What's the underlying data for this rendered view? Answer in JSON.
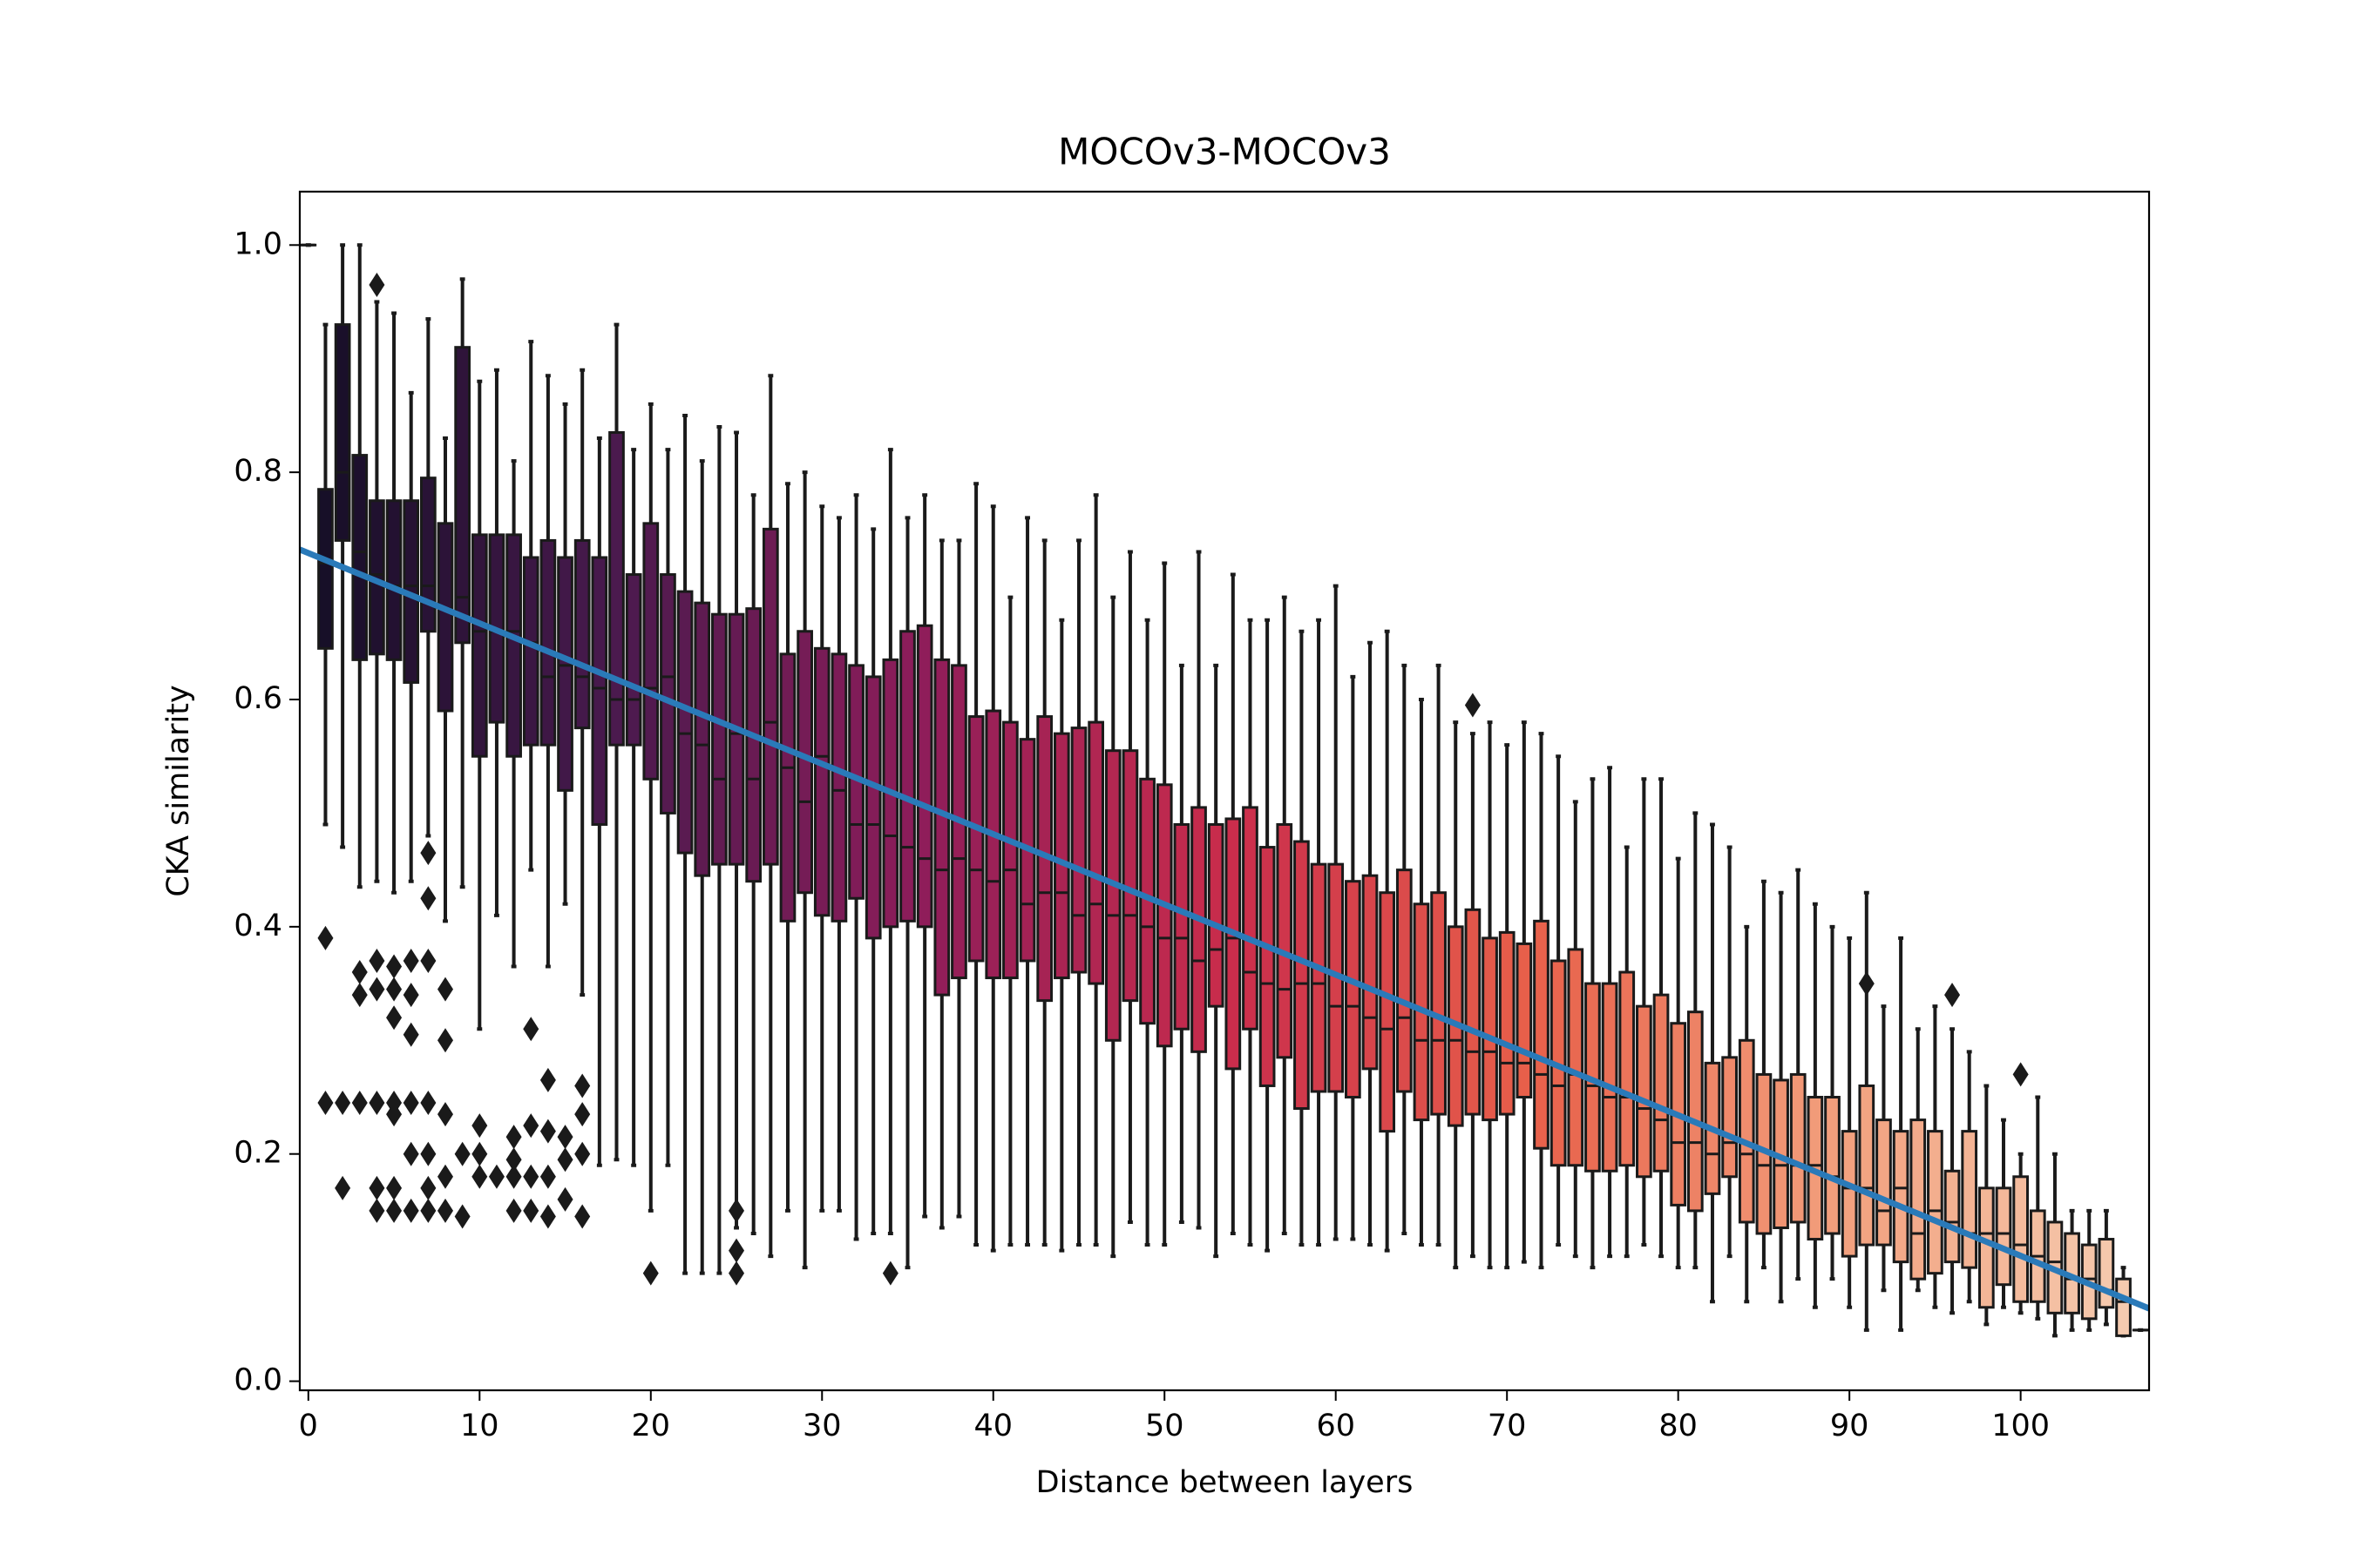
{
  "chart_data": {
    "type": "boxplot",
    "title": "MOCOv3-MOCOv3",
    "xlabel": "Distance between layers",
    "ylabel": "CKA similarity",
    "xlim": [
      -0.5,
      107.5
    ],
    "ylim": [
      -0.008,
      1.047
    ],
    "xticks": [
      0,
      10,
      20,
      30,
      40,
      50,
      60,
      70,
      80,
      90,
      100
    ],
    "yticks": [
      {
        "value": 0,
        "label": "0.0"
      },
      0.2,
      0.4,
      0.6,
      0.8,
      {
        "value": 1,
        "label": "1.0"
      }
    ],
    "palette": [
      "#140e26",
      "#4a1a4e",
      "#8e1d5a",
      "#c92c4c",
      "#e8604a",
      "#f29f7c",
      "#f5cdb2"
    ],
    "edge_color": "#1a1a1a",
    "positions": [
      0,
      1,
      2,
      3,
      4,
      5,
      6,
      7,
      8,
      9,
      10,
      11,
      12,
      13,
      14,
      15,
      16,
      17,
      18,
      19,
      20,
      21,
      22,
      23,
      24,
      25,
      26,
      27,
      28,
      29,
      30,
      31,
      32,
      33,
      34,
      35,
      36,
      37,
      38,
      39,
      40,
      41,
      42,
      43,
      44,
      45,
      46,
      47,
      48,
      49,
      50,
      51,
      52,
      53,
      54,
      55,
      56,
      57,
      58,
      59,
      60,
      61,
      62,
      63,
      64,
      65,
      66,
      67,
      68,
      69,
      70,
      71,
      72,
      73,
      74,
      75,
      76,
      77,
      78,
      79,
      80,
      81,
      82,
      83,
      84,
      85,
      86,
      87,
      88,
      89,
      90,
      91,
      92,
      93,
      94,
      95,
      96,
      97,
      98,
      99,
      100,
      101,
      102,
      103,
      104,
      105,
      106,
      107
    ],
    "whislo": [
      1.0,
      0.49,
      0.47,
      0.435,
      0.44,
      0.43,
      0.44,
      0.48,
      0.405,
      0.435,
      0.31,
      0.41,
      0.365,
      0.45,
      0.365,
      0.42,
      0.34,
      0.19,
      0.195,
      0.19,
      0.15,
      0.19,
      0.095,
      0.095,
      0.095,
      0.135,
      0.13,
      0.11,
      0.15,
      0.1,
      0.15,
      0.15,
      0.125,
      0.13,
      0.13,
      0.1,
      0.145,
      0.135,
      0.145,
      0.12,
      0.115,
      0.12,
      0.12,
      0.12,
      0.115,
      0.12,
      0.12,
      0.11,
      0.14,
      0.12,
      0.12,
      0.14,
      0.135,
      0.11,
      0.13,
      0.12,
      0.115,
      0.13,
      0.12,
      0.12,
      0.125,
      0.125,
      0.12,
      0.115,
      0.13,
      0.12,
      0.12,
      0.1,
      0.11,
      0.1,
      0.1,
      0.105,
      0.1,
      0.12,
      0.11,
      0.1,
      0.11,
      0.11,
      0.12,
      0.11,
      0.1,
      0.1,
      0.07,
      0.11,
      0.07,
      0.1,
      0.07,
      0.09,
      0.065,
      0.09,
      0.065,
      0.045,
      0.08,
      0.045,
      0.08,
      0.065,
      0.06,
      0.07,
      0.05,
      0.065,
      0.06,
      0.055,
      0.04,
      0.045,
      0.045,
      0.05,
      0.04,
      0.045
    ],
    "q1": [
      1.0,
      0.645,
      0.74,
      0.635,
      0.64,
      0.635,
      0.615,
      0.66,
      0.59,
      0.65,
      0.55,
      0.58,
      0.55,
      0.56,
      0.56,
      0.52,
      0.575,
      0.49,
      0.56,
      0.56,
      0.53,
      0.5,
      0.465,
      0.445,
      0.455,
      0.455,
      0.44,
      0.455,
      0.405,
      0.43,
      0.41,
      0.405,
      0.425,
      0.39,
      0.4,
      0.405,
      0.4,
      0.34,
      0.355,
      0.37,
      0.355,
      0.355,
      0.37,
      0.335,
      0.355,
      0.36,
      0.35,
      0.3,
      0.335,
      0.315,
      0.295,
      0.31,
      0.29,
      0.33,
      0.275,
      0.31,
      0.26,
      0.285,
      0.24,
      0.255,
      0.255,
      0.25,
      0.275,
      0.22,
      0.255,
      0.23,
      0.235,
      0.225,
      0.235,
      0.23,
      0.235,
      0.25,
      0.205,
      0.19,
      0.19,
      0.185,
      0.185,
      0.19,
      0.18,
      0.185,
      0.155,
      0.15,
      0.165,
      0.18,
      0.14,
      0.13,
      0.135,
      0.14,
      0.125,
      0.13,
      0.11,
      0.12,
      0.12,
      0.105,
      0.09,
      0.095,
      0.105,
      0.1,
      0.065,
      0.085,
      0.07,
      0.07,
      0.06,
      0.06,
      0.055,
      0.065,
      0.04,
      0.045
    ],
    "med": [
      1.0,
      0.72,
      0.8,
      0.73,
      0.71,
      0.7,
      0.7,
      0.7,
      0.68,
      0.69,
      0.66,
      0.66,
      0.66,
      0.65,
      0.62,
      0.63,
      0.62,
      0.61,
      0.6,
      0.6,
      0.61,
      0.62,
      0.57,
      0.56,
      0.53,
      0.57,
      0.53,
      0.58,
      0.54,
      0.51,
      0.55,
      0.52,
      0.49,
      0.49,
      0.48,
      0.47,
      0.46,
      0.45,
      0.46,
      0.45,
      0.44,
      0.45,
      0.42,
      0.43,
      0.43,
      0.41,
      0.42,
      0.41,
      0.41,
      0.4,
      0.39,
      0.39,
      0.37,
      0.38,
      0.39,
      0.36,
      0.35,
      0.345,
      0.35,
      0.35,
      0.33,
      0.33,
      0.32,
      0.31,
      0.32,
      0.3,
      0.3,
      0.3,
      0.29,
      0.29,
      0.28,
      0.28,
      0.27,
      0.26,
      0.27,
      0.26,
      0.25,
      0.25,
      0.24,
      0.23,
      0.21,
      0.21,
      0.2,
      0.21,
      0.2,
      0.19,
      0.19,
      0.19,
      0.19,
      0.18,
      0.17,
      0.17,
      0.15,
      0.17,
      0.13,
      0.15,
      0.14,
      0.13,
      0.13,
      0.13,
      0.12,
      0.11,
      0.105,
      0.09,
      0.09,
      0.08,
      0.07,
      0.045
    ],
    "q3": [
      1.0,
      0.785,
      0.93,
      0.815,
      0.775,
      0.775,
      0.775,
      0.795,
      0.755,
      0.91,
      0.745,
      0.745,
      0.745,
      0.725,
      0.74,
      0.725,
      0.74,
      0.725,
      0.835,
      0.71,
      0.755,
      0.71,
      0.695,
      0.685,
      0.675,
      0.675,
      0.68,
      0.75,
      0.64,
      0.66,
      0.645,
      0.64,
      0.63,
      0.62,
      0.635,
      0.66,
      0.665,
      0.635,
      0.63,
      0.585,
      0.59,
      0.58,
      0.565,
      0.585,
      0.57,
      0.575,
      0.58,
      0.555,
      0.555,
      0.53,
      0.525,
      0.49,
      0.505,
      0.49,
      0.495,
      0.505,
      0.47,
      0.49,
      0.475,
      0.455,
      0.455,
      0.44,
      0.445,
      0.43,
      0.45,
      0.42,
      0.43,
      0.4,
      0.415,
      0.39,
      0.395,
      0.385,
      0.405,
      0.37,
      0.38,
      0.35,
      0.35,
      0.36,
      0.33,
      0.34,
      0.315,
      0.325,
      0.28,
      0.285,
      0.3,
      0.27,
      0.265,
      0.27,
      0.25,
      0.25,
      0.22,
      0.26,
      0.23,
      0.22,
      0.23,
      0.22,
      0.185,
      0.22,
      0.17,
      0.17,
      0.18,
      0.15,
      0.14,
      0.13,
      0.12,
      0.125,
      0.09,
      0.045
    ],
    "whishi": [
      1.0,
      0.93,
      1.0,
      1.0,
      0.95,
      0.94,
      0.87,
      0.935,
      0.83,
      0.97,
      0.88,
      0.89,
      0.81,
      0.915,
      0.885,
      0.86,
      0.89,
      0.83,
      0.93,
      0.82,
      0.86,
      0.82,
      0.85,
      0.81,
      0.84,
      0.835,
      0.78,
      0.885,
      0.79,
      0.8,
      0.77,
      0.76,
      0.78,
      0.75,
      0.82,
      0.76,
      0.78,
      0.74,
      0.74,
      0.79,
      0.77,
      0.69,
      0.76,
      0.74,
      0.67,
      0.74,
      0.78,
      0.69,
      0.73,
      0.67,
      0.72,
      0.63,
      0.73,
      0.63,
      0.71,
      0.67,
      0.67,
      0.69,
      0.66,
      0.67,
      0.7,
      0.62,
      0.65,
      0.66,
      0.63,
      0.6,
      0.63,
      0.58,
      0.57,
      0.58,
      0.56,
      0.58,
      0.57,
      0.55,
      0.51,
      0.53,
      0.54,
      0.47,
      0.53,
      0.53,
      0.46,
      0.5,
      0.49,
      0.47,
      0.4,
      0.44,
      0.43,
      0.45,
      0.42,
      0.4,
      0.39,
      0.43,
      0.33,
      0.39,
      0.31,
      0.33,
      0.31,
      0.29,
      0.26,
      0.23,
      0.2,
      0.25,
      0.2,
      0.15,
      0.15,
      0.15,
      0.1,
      0.045
    ],
    "fliers": [
      {
        "x": 1,
        "values": [
          0.39,
          0.245
        ]
      },
      {
        "x": 2,
        "values": [
          0.245,
          0.17
        ]
      },
      {
        "x": 3,
        "values": [
          0.36,
          0.34,
          0.245
        ]
      },
      {
        "x": 4,
        "values": [
          0.965,
          0.37,
          0.345,
          0.245,
          0.17,
          0.15
        ]
      },
      {
        "x": 5,
        "values": [
          0.365,
          0.345,
          0.32,
          0.245,
          0.235,
          0.17,
          0.15
        ]
      },
      {
        "x": 6,
        "values": [
          0.37,
          0.34,
          0.305,
          0.245,
          0.2,
          0.15
        ]
      },
      {
        "x": 7,
        "values": [
          0.465,
          0.425,
          0.37,
          0.245,
          0.2,
          0.17,
          0.15
        ]
      },
      {
        "x": 8,
        "values": [
          0.345,
          0.3,
          0.235,
          0.18,
          0.15
        ]
      },
      {
        "x": 9,
        "values": [
          0.2,
          0.145
        ]
      },
      {
        "x": 10,
        "values": [
          0.225,
          0.2,
          0.18
        ]
      },
      {
        "x": 11,
        "values": [
          0.18
        ]
      },
      {
        "x": 12,
        "values": [
          0.215,
          0.195,
          0.18,
          0.15
        ]
      },
      {
        "x": 13,
        "values": [
          0.31,
          0.225,
          0.18,
          0.15
        ]
      },
      {
        "x": 14,
        "values": [
          0.265,
          0.22,
          0.18,
          0.145
        ]
      },
      {
        "x": 15,
        "values": [
          0.215,
          0.195,
          0.16
        ]
      },
      {
        "x": 16,
        "values": [
          0.26,
          0.235,
          0.2,
          0.145
        ]
      },
      {
        "x": 20,
        "values": [
          0.095
        ]
      },
      {
        "x": 25,
        "values": [
          0.15,
          0.115,
          0.095
        ]
      },
      {
        "x": 34,
        "values": [
          0.095
        ]
      },
      {
        "x": 68,
        "values": [
          0.595
        ]
      },
      {
        "x": 91,
        "values": [
          0.35
        ]
      },
      {
        "x": 96,
        "values": [
          0.34
        ]
      },
      {
        "x": 100,
        "values": [
          0.27
        ]
      }
    ],
    "fit": {
      "color": "#2a7ab9",
      "x": [
        -0.5,
        107.5
      ],
      "y": [
        0.732,
        0.064
      ]
    }
  }
}
